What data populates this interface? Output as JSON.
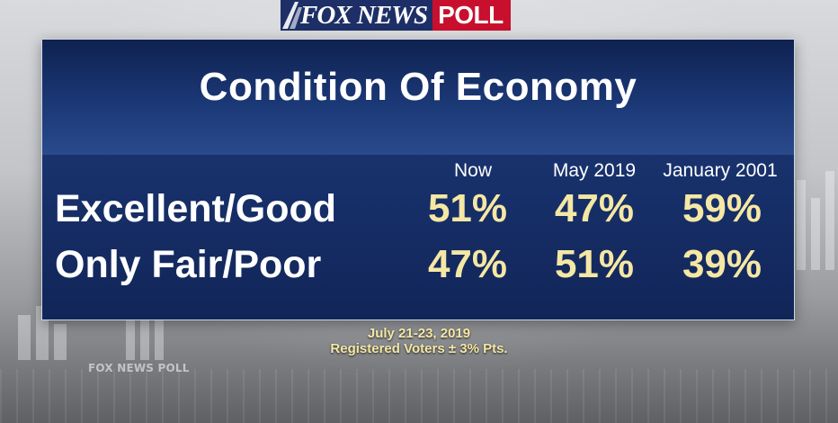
{
  "brand": {
    "logo_fox": "FOX NEWS",
    "logo_poll": "POLL",
    "watermark": "FOX NEWS POLL"
  },
  "title": "Condition Of Economy",
  "table": {
    "columns": [
      "Now",
      "May 2019",
      "January 2001"
    ],
    "rows": [
      {
        "label": "Excellent/Good",
        "values": [
          "51%",
          "47%",
          "59%"
        ]
      },
      {
        "label": "Only Fair/Poor",
        "values": [
          "47%",
          "51%",
          "39%"
        ]
      }
    ]
  },
  "footer": {
    "dates": "July 21-23, 2019",
    "sample": "Registered Voters ± 3% Pts."
  },
  "colors": {
    "panel": "#1a3470",
    "value_text": "#f5e7a4",
    "logo_blue": "#1d2f66",
    "logo_red": "#c8102e"
  }
}
